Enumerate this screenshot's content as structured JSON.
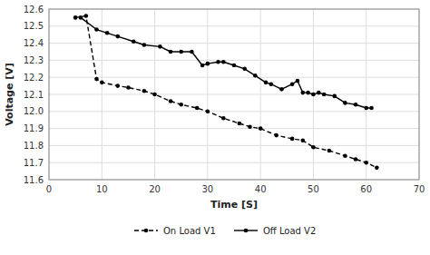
{
  "chart_data": {
    "type": "line",
    "title": "",
    "xlabel": "Time [S]",
    "ylabel": "Voltage [V]",
    "xlim": [
      0,
      70
    ],
    "ylim": [
      11.6,
      12.6
    ],
    "xticks": [
      0,
      10,
      20,
      30,
      40,
      50,
      60,
      70
    ],
    "yticks": [
      11.6,
      11.7,
      11.8,
      11.9,
      {
        "value": 12.0,
        "label": "12.0"
      },
      12.1,
      12.2,
      12.3,
      12.4,
      12.5,
      12.6
    ],
    "grid": true,
    "legend": "bottom",
    "series": [
      {
        "name": "On Load V1",
        "color": "#000000",
        "line_style": "dashed",
        "marker": "circle",
        "x": [
          5,
          7,
          9,
          10,
          13,
          15,
          18,
          20,
          23,
          25,
          28,
          30,
          33,
          36,
          38,
          40,
          43,
          46,
          48,
          50,
          53,
          56,
          58,
          60,
          62
        ],
        "values": [
          12.55,
          12.56,
          12.19,
          12.17,
          12.15,
          12.14,
          12.12,
          12.1,
          12.06,
          12.04,
          12.02,
          12.0,
          11.96,
          11.93,
          11.91,
          11.9,
          11.86,
          11.84,
          11.83,
          11.79,
          11.77,
          11.74,
          11.72,
          11.7,
          11.67
        ]
      },
      {
        "name": "Off Load V2",
        "color": "#000000",
        "line_style": "solid",
        "marker": "circle",
        "x": [
          6,
          9,
          11,
          13,
          16,
          18,
          21,
          23,
          25,
          27,
          29,
          30,
          32,
          33,
          35,
          37,
          39,
          41,
          42,
          44,
          46,
          47,
          48,
          49,
          50,
          51,
          52,
          54,
          56,
          58,
          60,
          61
        ],
        "values": [
          12.55,
          12.48,
          12.46,
          12.44,
          12.41,
          12.39,
          12.38,
          12.35,
          12.35,
          12.35,
          12.27,
          12.28,
          12.29,
          12.29,
          12.27,
          12.25,
          12.21,
          12.17,
          12.16,
          12.13,
          12.16,
          12.18,
          12.11,
          12.11,
          12.1,
          12.11,
          12.1,
          12.09,
          12.05,
          12.04,
          12.02,
          12.02
        ]
      }
    ]
  }
}
